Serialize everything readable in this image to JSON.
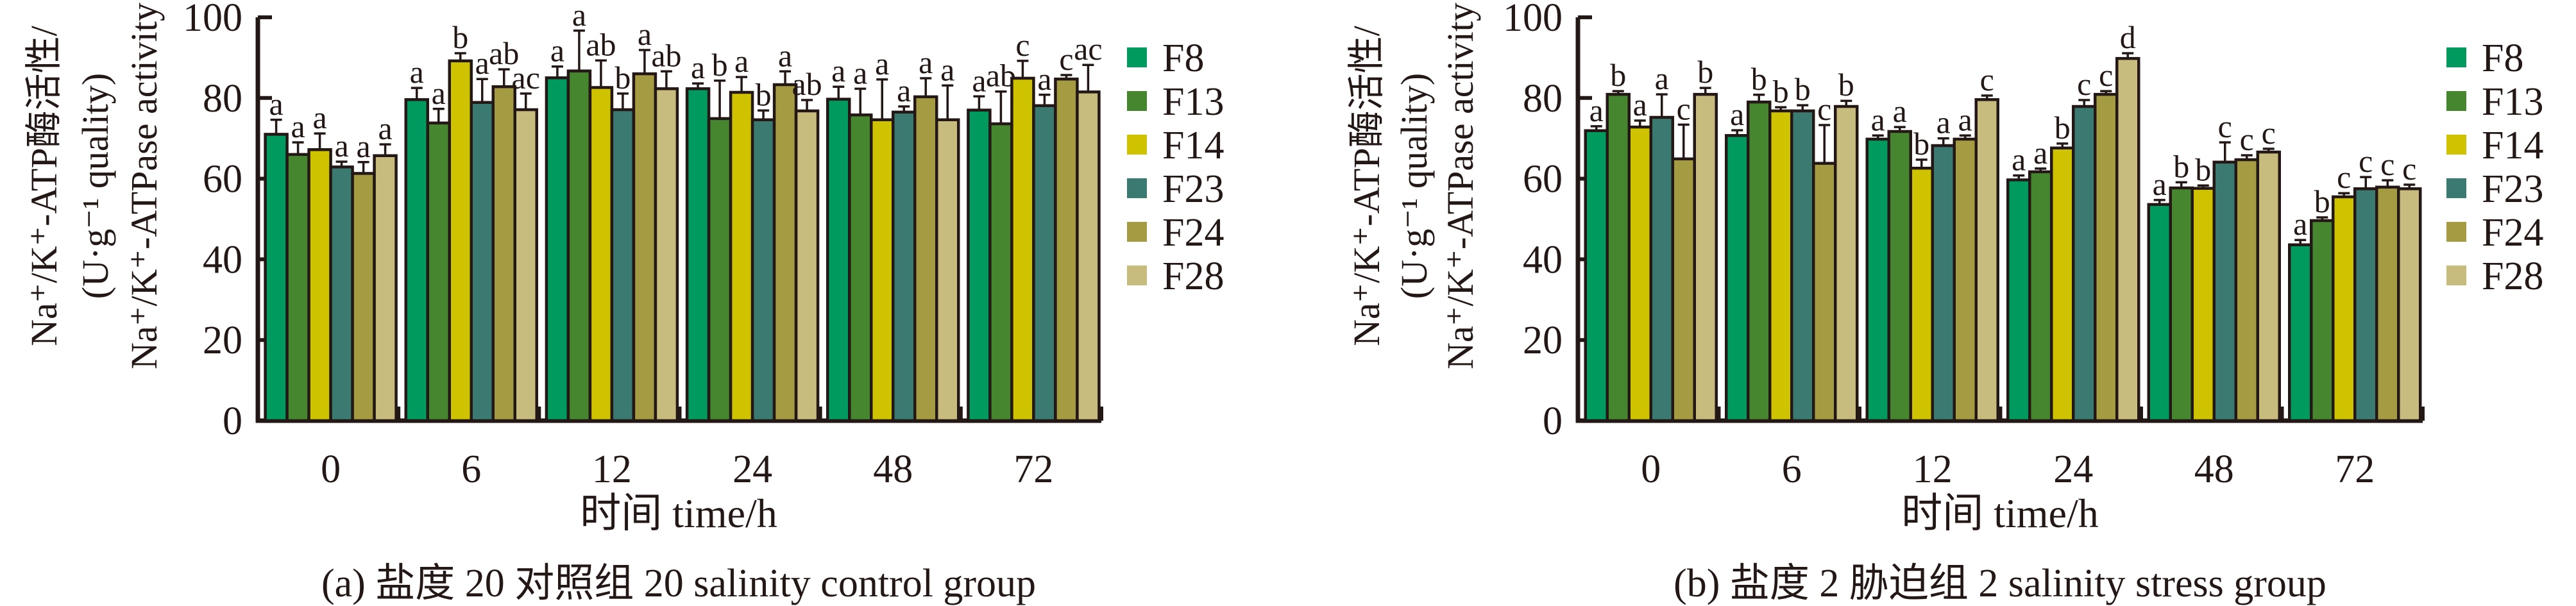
{
  "figure": {
    "panels": [
      {
        "id": "a",
        "caption": "(a) 盐度 20 对照组 20 salinity control group",
        "ylabel_lines": [
          "Na⁺/K⁺-ATP酶活性/",
          "(U·g⁻¹ quality)",
          "Na⁺/K⁺-ATPase activity"
        ],
        "xlabel": "时间 time/h"
      },
      {
        "id": "b",
        "caption": "(b) 盐度 2 胁迫组 2 salinity stress group",
        "ylabel_lines": [
          "Na⁺/K⁺-ATP酶活性/",
          "(U·g⁻¹ quality)",
          "Na⁺/K⁺-ATPase activity"
        ],
        "xlabel": "时间 time/h"
      }
    ]
  },
  "chart_data": [
    {
      "type": "bar",
      "title": "(a) 盐度 20 对照组 20 salinity control group",
      "xlabel": "时间 time/h",
      "ylabel": "Na⁺/K⁺-ATP酶活性/(U·g⁻¹ quality) Na⁺/K⁺-ATPase activity",
      "categories": [
        "0",
        "6",
        "12",
        "24",
        "48",
        "72"
      ],
      "ylim": [
        0,
        100
      ],
      "yticks": [
        0,
        20,
        40,
        60,
        80,
        100
      ],
      "grid": false,
      "legend": "right",
      "series": [
        {
          "name": "F8",
          "color": "#009a5e",
          "values": [
            71,
            79.6,
            85,
            82.3,
            79.7,
            77
          ],
          "errors": [
            3.6,
            2.9,
            2.8,
            1.3,
            3.1,
            3.4
          ],
          "labels": [
            "a",
            "a",
            "a",
            "a",
            "a",
            "a"
          ]
        },
        {
          "name": "F13",
          "color": "#45862f",
          "values": [
            66,
            73.8,
            86.7,
            74.9,
            75.8,
            73.6
          ],
          "errors": [
            3,
            3.5,
            10,
            9.4,
            6.5,
            8
          ],
          "labels": [
            "a",
            "a",
            "a",
            "b",
            "a",
            "ab"
          ]
        },
        {
          "name": "F14",
          "color": "#cfc300",
          "values": [
            67.2,
            89.2,
            82.6,
            81.4,
            74.6,
            84.9
          ],
          "errors": [
            4,
            1.9,
            6.7,
            3.8,
            10,
            4.3
          ],
          "labels": [
            "a",
            "b",
            "ab",
            "a",
            "a",
            "c"
          ]
        },
        {
          "name": "F23",
          "color": "#3a7a70",
          "values": [
            62.9,
            78.9,
            77.1,
            74.6,
            76.5,
            78.1
          ],
          "errors": [
            1.3,
            5.8,
            4,
            2.3,
            1.4,
            2.7
          ],
          "labels": [
            "a",
            "a",
            "b",
            "b",
            "a",
            "a"
          ]
        },
        {
          "name": "F24",
          "color": "#a49b42",
          "values": [
            61.3,
            82.8,
            86,
            83.3,
            80.3,
            84.7
          ],
          "errors": [
            2.8,
            4.3,
            5.9,
            3.3,
            4.6,
            1
          ],
          "labels": [
            "a",
            "ab",
            "a",
            "a",
            "a",
            "c"
          ]
        },
        {
          "name": "F28",
          "color": "#c8bb7e",
          "values": [
            65.7,
            77.1,
            82.3,
            76.8,
            74.6,
            81.5
          ],
          "errors": [
            2.8,
            4,
            4.3,
            2.7,
            8.5,
            6.7
          ],
          "labels": [
            "a",
            "ac",
            "ab",
            "ab",
            "a",
            "ac"
          ]
        }
      ]
    },
    {
      "type": "bar",
      "title": "(b) 盐度 2 胁迫组 2 salinity stress group",
      "xlabel": "时间 time/h",
      "ylabel": "Na⁺/K⁺-ATP酶活性/(U·g⁻¹ quality) Na⁺/K⁺-ATPase activity",
      "categories": [
        "0",
        "6",
        "12",
        "24",
        "48",
        "72"
      ],
      "ylim": [
        0,
        100
      ],
      "yticks": [
        0,
        20,
        40,
        60,
        80,
        100
      ],
      "grid": false,
      "legend": "right",
      "series": [
        {
          "name": "F8",
          "color": "#009a5e",
          "values": [
            71.9,
            70.7,
            69.8,
            59.7,
            53.6,
            43.6
          ],
          "errors": [
            1.1,
            1.3,
            0.9,
            1.1,
            1.1,
            1.2
          ],
          "labels": [
            "a",
            "a",
            "a",
            "a",
            "a",
            "a"
          ]
        },
        {
          "name": "F13",
          "color": "#45862f",
          "values": [
            80.9,
            79,
            71.7,
            61.7,
            57.7,
            49.6
          ],
          "errors": [
            0.8,
            1.8,
            1.1,
            0.8,
            1.4,
            0.8
          ],
          "labels": [
            "b",
            "b",
            "a",
            "a",
            "b",
            "b"
          ]
        },
        {
          "name": "F14",
          "color": "#cfc300",
          "values": [
            72.8,
            76.8,
            62.6,
            67.6,
            57.6,
            55.5
          ],
          "errors": [
            1.6,
            0.9,
            2.1,
            1.1,
            0.7,
            0.9
          ],
          "labels": [
            "a",
            "b",
            "b",
            "b",
            "b",
            "c"
          ]
        },
        {
          "name": "F23",
          "color": "#3a7a70",
          "values": [
            75.2,
            76.8,
            68.2,
            77.9,
            64.1,
            57.5
          ],
          "errors": [
            5.7,
            1.4,
            1.8,
            1.6,
            4.9,
            2.9
          ],
          "labels": [
            "a",
            "b",
            "a",
            "c",
            "c",
            "c"
          ]
        },
        {
          "name": "F24",
          "color": "#a49b42",
          "values": [
            64.9,
            63.8,
            69.8,
            80.9,
            64.7,
            57.9
          ],
          "errors": [
            8.5,
            9.5,
            0.9,
            0.8,
            1.1,
            1.7
          ],
          "labels": [
            "c",
            "c",
            "a",
            "c",
            "c",
            "c"
          ]
        },
        {
          "name": "F28",
          "color": "#c8bb7e",
          "values": [
            80.9,
            77.9,
            79.6,
            89.8,
            66.6,
            57.5
          ],
          "errors": [
            1.6,
            1.4,
            1,
            1.3,
            0.8,
            1
          ],
          "labels": [
            "b",
            "b",
            "c",
            "d",
            "c",
            "c"
          ]
        }
      ]
    }
  ]
}
